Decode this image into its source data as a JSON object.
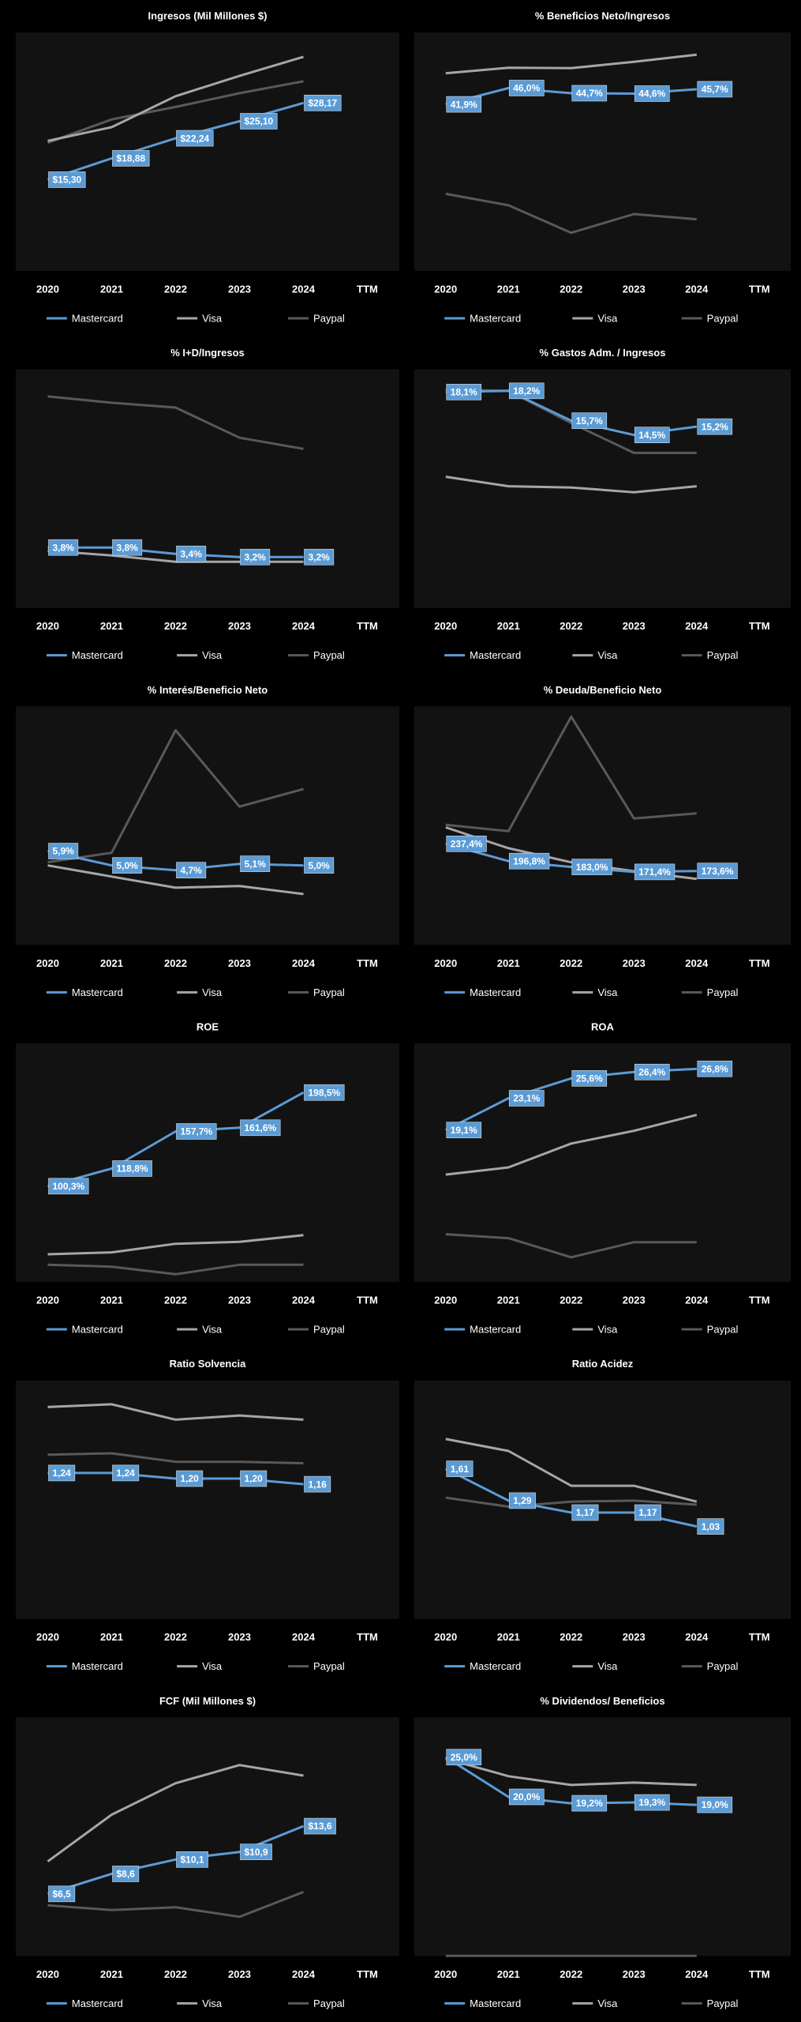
{
  "chart_data": [
    {
      "type": "line",
      "title": "Ingresos (Mil Millones $)",
      "categories": [
        "2020",
        "2021",
        "2022",
        "2023",
        "2024",
        "TTM"
      ],
      "ylim": [
        0,
        40
      ],
      "series": [
        {
          "name": "Mastercard",
          "color": "#5b9bd5",
          "values": [
            15.3,
            18.88,
            22.24,
            25.1,
            28.17,
            null
          ],
          "value_labels": [
            "$15,30",
            "$18,88",
            "$22,24",
            "$25,10",
            "$28,17",
            null
          ]
        },
        {
          "name": "Visa",
          "color": "#a6a6a6",
          "values": [
            21.8,
            24.1,
            29.3,
            32.7,
            35.9,
            null
          ]
        },
        {
          "name": "Paypal",
          "color": "#595959",
          "values": [
            21.5,
            25.4,
            27.5,
            29.8,
            31.8,
            null
          ]
        }
      ]
    },
    {
      "type": "line",
      "title": "% Beneficios Neto/Ingresos",
      "categories": [
        "2020",
        "2021",
        "2022",
        "2023",
        "2024",
        "TTM"
      ],
      "ylim": [
        0,
        60
      ],
      "series": [
        {
          "name": "Mastercard",
          "color": "#5b9bd5",
          "values": [
            41.9,
            46.0,
            44.7,
            44.6,
            45.7,
            null
          ],
          "value_labels": [
            "41,9%",
            "46,0%",
            "44,7%",
            "44,6%",
            "45,7%",
            null
          ]
        },
        {
          "name": "Visa",
          "color": "#a6a6a6",
          "values": [
            49.7,
            51.1,
            51.0,
            52.6,
            54.4,
            null
          ]
        },
        {
          "name": "Paypal",
          "color": "#595959",
          "values": [
            19.4,
            16.5,
            9.6,
            14.3,
            13.0,
            null
          ]
        }
      ]
    },
    {
      "type": "line",
      "title": "% I+D/Ingresos",
      "categories": [
        "2020",
        "2021",
        "2022",
        "2023",
        "2024",
        "TTM"
      ],
      "ylim": [
        0,
        15
      ],
      "series": [
        {
          "name": "Mastercard",
          "color": "#5b9bd5",
          "values": [
            3.8,
            3.8,
            3.4,
            3.2,
            3.2,
            null
          ],
          "value_labels": [
            "3,8%",
            "3,8%",
            "3,4%",
            "3,2%",
            "3,2%",
            null
          ]
        },
        {
          "name": "Visa",
          "color": "#a6a6a6",
          "values": [
            3.6,
            3.3,
            2.9,
            2.9,
            2.9,
            null
          ]
        },
        {
          "name": "Paypal",
          "color": "#595959",
          "values": [
            13.3,
            12.9,
            12.6,
            10.7,
            10.0,
            null
          ]
        }
      ]
    },
    {
      "type": "line",
      "title": "% Gastos Adm. / Ingresos",
      "categories": [
        "2020",
        "2021",
        "2022",
        "2023",
        "2024",
        "TTM"
      ],
      "ylim": [
        0,
        20
      ],
      "series": [
        {
          "name": "Mastercard",
          "color": "#5b9bd5",
          "values": [
            18.1,
            18.2,
            15.7,
            14.5,
            15.2,
            null
          ],
          "value_labels": [
            "18,1%",
            "18,2%",
            "15,7%",
            "14,5%",
            "15,2%",
            null
          ]
        },
        {
          "name": "Visa",
          "color": "#a6a6a6",
          "values": [
            11.0,
            10.2,
            10.1,
            9.7,
            10.2,
            null
          ]
        },
        {
          "name": "Paypal",
          "color": "#595959",
          "values": [
            18.3,
            18.2,
            15.5,
            13.0,
            13.0,
            null
          ]
        }
      ]
    },
    {
      "type": "line",
      "title": "% Interés/Beneficio  Neto",
      "categories": [
        "2020",
        "2021",
        "2022",
        "2023",
        "2024",
        "TTM"
      ],
      "ylim": [
        0,
        15
      ],
      "series": [
        {
          "name": "Mastercard",
          "color": "#5b9bd5",
          "values": [
            5.9,
            5.0,
            4.7,
            5.1,
            5.0,
            null
          ],
          "value_labels": [
            "5,9%",
            "5,0%",
            "4,7%",
            "5,1%",
            "5,0%",
            null
          ]
        },
        {
          "name": "Visa",
          "color": "#a6a6a6",
          "values": [
            5.0,
            4.3,
            3.6,
            3.7,
            3.2,
            null
          ]
        },
        {
          "name": "Paypal",
          "color": "#595959",
          "values": [
            5.2,
            5.8,
            13.5,
            8.7,
            9.8,
            null
          ]
        }
      ]
    },
    {
      "type": "line",
      "title": "% Deuda/Beneficio  Neto",
      "categories": [
        "2020",
        "2021",
        "2022",
        "2023",
        "2024",
        "TTM"
      ],
      "ylim": [
        0,
        560
      ],
      "series": [
        {
          "name": "Mastercard",
          "color": "#5b9bd5",
          "values": [
            237.4,
            196.8,
            183.0,
            171.4,
            173.6,
            null
          ],
          "value_labels": [
            "237,4%",
            "196,8%",
            "183,0%",
            "171,4%",
            "173,6%",
            null
          ]
        },
        {
          "name": "Visa",
          "color": "#a6a6a6",
          "values": [
            276,
            227,
            194,
            173,
            155,
            null
          ]
        },
        {
          "name": "Paypal",
          "color": "#595959",
          "values": [
            282,
            267,
            536,
            297,
            309,
            null
          ]
        }
      ]
    },
    {
      "type": "line",
      "title": "ROE",
      "categories": [
        "2020",
        "2021",
        "2022",
        "2023",
        "2024",
        "TTM"
      ],
      "ylim": [
        0,
        250
      ],
      "series": [
        {
          "name": "Mastercard",
          "color": "#5b9bd5",
          "values": [
            100.3,
            118.8,
            157.7,
            161.6,
            198.5,
            null
          ],
          "value_labels": [
            "100,3%",
            "118,8%",
            "157,7%",
            "161,6%",
            "198,5%",
            null
          ]
        },
        {
          "name": "Visa",
          "color": "#a6a6a6",
          "values": [
            29,
            31,
            40,
            42,
            49,
            null
          ]
        },
        {
          "name": "Paypal",
          "color": "#595959",
          "values": [
            18,
            16,
            8,
            18,
            18,
            null
          ]
        }
      ]
    },
    {
      "type": "line",
      "title": "ROA",
      "categories": [
        "2020",
        "2021",
        "2022",
        "2023",
        "2024",
        "TTM"
      ],
      "ylim": [
        0,
        30
      ],
      "series": [
        {
          "name": "Mastercard",
          "color": "#5b9bd5",
          "values": [
            19.1,
            23.1,
            25.6,
            26.4,
            26.8,
            null
          ],
          "value_labels": [
            "19,1%",
            "23,1%",
            "25,6%",
            "26,4%",
            "26,8%",
            null
          ]
        },
        {
          "name": "Visa",
          "color": "#a6a6a6",
          "values": [
            13.5,
            14.4,
            17.4,
            19.0,
            21.0,
            null
          ]
        },
        {
          "name": "Paypal",
          "color": "#595959",
          "values": [
            6.0,
            5.5,
            3.1,
            5.0,
            5.0,
            null
          ]
        }
      ]
    },
    {
      "type": "line",
      "title": "Ratio Solvencia",
      "categories": [
        "2020",
        "2021",
        "2022",
        "2023",
        "2024",
        "TTM"
      ],
      "ylim": [
        0.2,
        1.9
      ],
      "series": [
        {
          "name": "Mastercard",
          "color": "#5b9bd5",
          "values": [
            1.24,
            1.24,
            1.2,
            1.2,
            1.16,
            null
          ],
          "value_labels": [
            "1,24",
            "1,24",
            "1,20",
            "1,20",
            "1,16",
            null
          ]
        },
        {
          "name": "Visa",
          "color": "#a6a6a6",
          "values": [
            1.71,
            1.73,
            1.62,
            1.65,
            1.62,
            null
          ]
        },
        {
          "name": "Paypal",
          "color": "#595959",
          "values": [
            1.37,
            1.38,
            1.32,
            1.32,
            1.31,
            null
          ]
        }
      ]
    },
    {
      "type": "line",
      "title": "Ratio Acidez",
      "categories": [
        "2020",
        "2021",
        "2022",
        "2023",
        "2024",
        "TTM"
      ],
      "ylim": [
        0.1,
        2.5
      ],
      "series": [
        {
          "name": "Mastercard",
          "color": "#5b9bd5",
          "values": [
            1.61,
            1.29,
            1.17,
            1.17,
            1.03,
            null
          ],
          "value_labels": [
            "1,61",
            "1,29",
            "1,17",
            "1,17",
            "1,03",
            null
          ]
        },
        {
          "name": "Visa",
          "color": "#a6a6a6",
          "values": [
            1.91,
            1.79,
            1.44,
            1.44,
            1.28,
            null
          ]
        },
        {
          "name": "Paypal",
          "color": "#595959",
          "values": [
            1.32,
            1.23,
            1.28,
            1.29,
            1.25,
            null
          ]
        }
      ]
    },
    {
      "type": "line",
      "title": "FCF (Mil Millones $)",
      "categories": [
        "2020",
        "2021",
        "2022",
        "2023",
        "2024",
        "TTM"
      ],
      "ylim": [
        0,
        25
      ],
      "series": [
        {
          "name": "Mastercard",
          "color": "#5b9bd5",
          "values": [
            6.5,
            8.6,
            10.1,
            10.9,
            13.6,
            null
          ],
          "value_labels": [
            "$6,5",
            "$8,6",
            "$10,1",
            "$10,9",
            "$13,6",
            null
          ]
        },
        {
          "name": "Visa",
          "color": "#a6a6a6",
          "values": [
            9.9,
            14.8,
            18.1,
            20.0,
            18.9,
            null
          ]
        },
        {
          "name": "Paypal",
          "color": "#595959",
          "values": [
            5.3,
            4.8,
            5.1,
            4.1,
            6.7,
            null
          ]
        }
      ]
    },
    {
      "type": "line",
      "title": "% Dividendos/  Beneficios",
      "categories": [
        "2020",
        "2021",
        "2022",
        "2023",
        "2024",
        "TTM"
      ],
      "ylim": [
        0,
        30
      ],
      "series": [
        {
          "name": "Mastercard",
          "color": "#5b9bd5",
          "values": [
            25.0,
            20.0,
            19.2,
            19.3,
            19.0,
            null
          ],
          "value_labels": [
            "25,0%",
            "20,0%",
            "19,2%",
            "19,3%",
            "19,0%",
            null
          ]
        },
        {
          "name": "Visa",
          "color": "#a6a6a6",
          "values": [
            24.8,
            22.6,
            21.5,
            21.8,
            21.5,
            null
          ]
        },
        {
          "name": "Paypal",
          "color": "#595959",
          "values": [
            0,
            0,
            0,
            0,
            0,
            null
          ]
        }
      ]
    }
  ]
}
